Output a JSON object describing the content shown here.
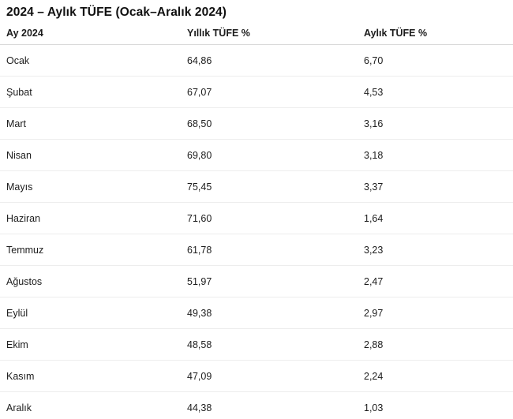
{
  "page": {
    "title": "2024 – Aylık TÜFE (Ocak–Aralık 2024)"
  },
  "table": {
    "columns": [
      "Ay 2024",
      "Yıllık TÜFE %",
      "Aylık TÜFE %"
    ],
    "rows": [
      [
        "Ocak",
        "64,86",
        "6,70"
      ],
      [
        "Şubat",
        "67,07",
        "4,53"
      ],
      [
        "Mart",
        "68,50",
        "3,16"
      ],
      [
        "Nisan",
        "69,80",
        "3,18"
      ],
      [
        "Mayıs",
        "75,45",
        "3,37"
      ],
      [
        "Haziran",
        "71,60",
        "1,64"
      ],
      [
        "Temmuz",
        "61,78",
        "3,23"
      ],
      [
        "Ağustos",
        "51,97",
        "2,47"
      ],
      [
        "Eylül",
        "49,38",
        "2,97"
      ],
      [
        "Ekim",
        "48,58",
        "2,88"
      ],
      [
        "Kasım",
        "47,09",
        "2,24"
      ],
      [
        "Aralık",
        "44,38",
        "1,03"
      ]
    ]
  },
  "colors": {
    "background": "#ffffff",
    "text": "#1c1c1c",
    "title_text": "#101010",
    "header_divider": "#d9d9d9",
    "row_divider": "#ededed"
  },
  "chart_data": {
    "type": "table",
    "title": "2024 – Aylık TÜFE (Ocak–Aralık 2024)",
    "columns": [
      "Ay 2024",
      "Yıllık TÜFE %",
      "Aylık TÜFE %"
    ],
    "categories": [
      "Ocak",
      "Şubat",
      "Mart",
      "Nisan",
      "Mayıs",
      "Haziran",
      "Temmuz",
      "Ağustos",
      "Eylül",
      "Ekim",
      "Kasım",
      "Aralık"
    ],
    "series": [
      {
        "name": "Yıllık TÜFE %",
        "values": [
          64.86,
          67.07,
          68.5,
          69.8,
          75.45,
          71.6,
          61.78,
          51.97,
          49.38,
          48.58,
          47.09,
          44.38
        ]
      },
      {
        "name": "Aylık TÜFE %",
        "values": [
          6.7,
          4.53,
          3.16,
          3.18,
          3.37,
          1.64,
          3.23,
          2.47,
          2.97,
          2.88,
          2.24,
          1.03
        ]
      }
    ]
  }
}
